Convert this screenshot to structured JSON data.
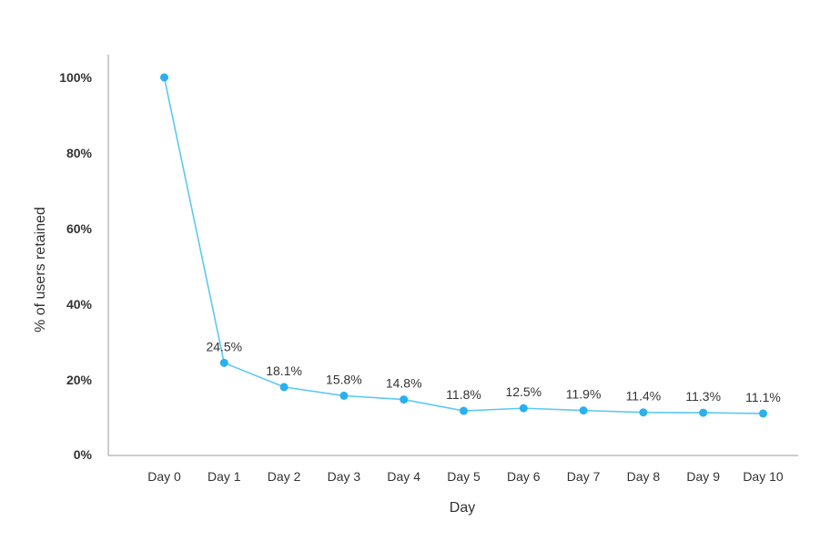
{
  "chart_data": {
    "type": "line",
    "title": "",
    "xlabel": "Day",
    "ylabel": "% of users retained",
    "categories": [
      "Day 0",
      "Day 1",
      "Day 2",
      "Day 3",
      "Day 4",
      "Day 5",
      "Day 6",
      "Day 7",
      "Day 8",
      "Day 9",
      "Day 10"
    ],
    "values": [
      100,
      24.5,
      18.1,
      15.8,
      14.8,
      11.8,
      12.5,
      11.9,
      11.4,
      11.3,
      11.1
    ],
    "data_labels": [
      "",
      "24.5%",
      "18.1%",
      "15.8%",
      "14.8%",
      "11.8%",
      "12.5%",
      "11.9%",
      "11.4%",
      "11.3%",
      "11.1%"
    ],
    "y_ticks": [
      0,
      20,
      40,
      60,
      80,
      100
    ],
    "y_tick_labels": [
      "0%",
      "20%",
      "40%",
      "60%",
      "80%",
      "100%"
    ],
    "ylim": [
      0,
      100
    ],
    "grid": false,
    "line_color": "#5bc8f5",
    "marker_color": "#2ab0ee"
  }
}
